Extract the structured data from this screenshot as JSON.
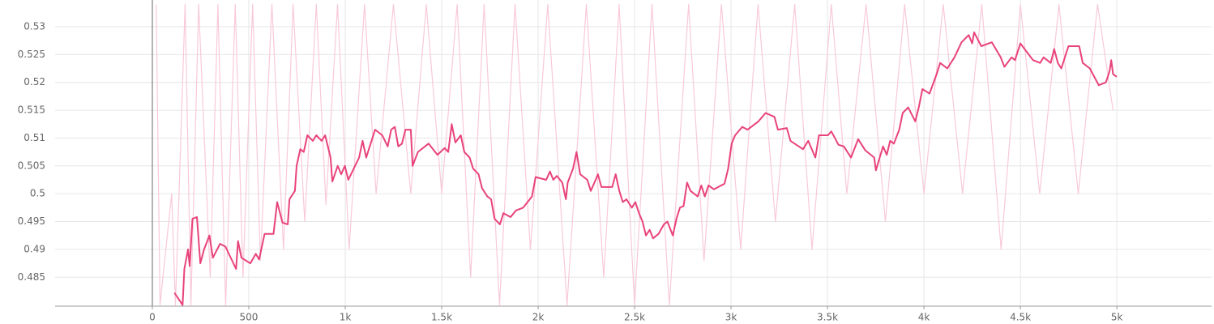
{
  "chart_data": {
    "type": "line",
    "xlim": [
      -504,
      5491
    ],
    "ylim": [
      0.4798,
      0.5348
    ],
    "xticks": [
      0,
      500,
      {
        "value": 1000,
        "label": "1k"
      },
      {
        "value": 1500,
        "label": "1.5k"
      },
      {
        "value": 2000,
        "label": "2k"
      },
      {
        "value": 2500,
        "label": "2.5k"
      },
      {
        "value": 3000,
        "label": "3k"
      },
      {
        "value": 3500,
        "label": "3.5k"
      },
      {
        "value": 4000,
        "label": "4k"
      },
      {
        "value": 4500,
        "label": "4.5k"
      },
      {
        "value": 5000,
        "label": "5k"
      }
    ],
    "yticks": [
      0.485,
      0.49,
      0.495,
      0.5,
      0.505,
      0.51,
      0.515,
      0.52,
      0.525,
      0.53
    ],
    "grid": true,
    "series": [
      {
        "color": "#f8c9da",
        "x": [
          20,
          40,
          100,
          120,
          170,
          200,
          240,
          300,
          340,
          380,
          430,
          470,
          520,
          560,
          620,
          680,
          730,
          790,
          850,
          900,
          960,
          1020,
          1100,
          1160,
          1250,
          1340,
          1420,
          1500,
          1580,
          1650,
          1720,
          1800,
          1880,
          1960,
          2050,
          2150,
          2250,
          2340,
          2420,
          2500,
          2590,
          2680,
          2780,
          2860,
          2950,
          3050,
          3140,
          3230,
          3330,
          3420,
          3520,
          3600,
          3700,
          3800,
          3900,
          4000,
          4100,
          4200,
          4300,
          4400,
          4500,
          4600,
          4700,
          4800,
          4900,
          4980
        ],
        "values": [
          0.534,
          0.48,
          0.5,
          0.48,
          0.534,
          0.48,
          0.534,
          0.485,
          0.534,
          0.48,
          0.534,
          0.485,
          0.534,
          0.488,
          0.534,
          0.49,
          0.534,
          0.495,
          0.534,
          0.498,
          0.534,
          0.49,
          0.534,
          0.5,
          0.534,
          0.5,
          0.534,
          0.5,
          0.534,
          0.485,
          0.534,
          0.48,
          0.534,
          0.49,
          0.534,
          0.48,
          0.534,
          0.485,
          0.534,
          0.48,
          0.534,
          0.48,
          0.534,
          0.488,
          0.534,
          0.49,
          0.534,
          0.495,
          0.534,
          0.49,
          0.534,
          0.5,
          0.534,
          0.495,
          0.534,
          0.5,
          0.534,
          0.5,
          0.534,
          0.49,
          0.534,
          0.5,
          0.534,
          0.5,
          0.534,
          0.515
        ]
      },
      {
        "color": "#e8437a",
        "x": [
          115,
          157,
          166,
          185,
          194,
          208,
          231,
          249,
          268,
          296,
          314,
          351,
          379,
          434,
          444,
          462,
          508,
          536,
          554,
          582,
          628,
          647,
          675,
          702,
          711,
          739,
          748,
          767,
          785,
          804,
          832,
          850,
          878,
          896,
          924,
          933,
          961,
          979,
          998,
          1016,
          1044,
          1072,
          1090,
          1109,
          1127,
          1155,
          1192,
          1220,
          1238,
          1257,
          1275,
          1294,
          1312,
          1340,
          1349,
          1377,
          1432,
          1478,
          1515,
          1534,
          1552,
          1571,
          1599,
          1617,
          1645,
          1663,
          1691,
          1709,
          1737,
          1756,
          1774,
          1802,
          1820,
          1857,
          1885,
          1922,
          1968,
          1987,
          2042,
          2061,
          2079,
          2097,
          2125,
          2144,
          2153,
          2181,
          2199,
          2218,
          2255,
          2273,
          2292,
          2310,
          2328,
          2384,
          2402,
          2421,
          2439,
          2458,
          2486,
          2504,
          2523,
          2541,
          2559,
          2578,
          2596,
          2624,
          2652,
          2670,
          2698,
          2717,
          2735,
          2754,
          2772,
          2790,
          2827,
          2846,
          2864,
          2883,
          2911,
          2966,
          2985,
          3003,
          3021,
          3058,
          3086,
          3142,
          3179,
          3225,
          3243,
          3289,
          3308,
          3373,
          3400,
          3437,
          3456,
          3502,
          3520,
          3557,
          3585,
          3622,
          3659,
          3696,
          3742,
          3751,
          3788,
          3807,
          3825,
          3844,
          3872,
          3890,
          3918,
          3955,
          3973,
          3992,
          4029,
          4066,
          4084,
          4121,
          4158,
          4195,
          4232,
          4250,
          4260,
          4297,
          4352,
          4398,
          4417,
          4454,
          4472,
          4500,
          4565,
          4602,
          4620,
          4657,
          4675,
          4694,
          4712,
          4749,
          4805,
          4823,
          4860,
          4906,
          4943,
          4962,
          4971,
          4980,
          4999
        ],
        "values": [
          0.4822,
          0.48,
          0.4865,
          0.49,
          0.487,
          0.4955,
          0.4958,
          0.4875,
          0.49,
          0.4925,
          0.4885,
          0.491,
          0.4905,
          0.4865,
          0.4915,
          0.4885,
          0.4875,
          0.4892,
          0.4882,
          0.4928,
          0.4928,
          0.4985,
          0.4948,
          0.4945,
          0.499,
          0.5005,
          0.505,
          0.508,
          0.5075,
          0.5105,
          0.5095,
          0.5105,
          0.5095,
          0.5105,
          0.5065,
          0.5022,
          0.505,
          0.5035,
          0.505,
          0.5025,
          0.5045,
          0.5065,
          0.5095,
          0.5065,
          0.5085,
          0.5115,
          0.5105,
          0.5085,
          0.5115,
          0.512,
          0.5085,
          0.509,
          0.5115,
          0.5115,
          0.505,
          0.5075,
          0.509,
          0.507,
          0.5082,
          0.5075,
          0.5125,
          0.5092,
          0.5105,
          0.5075,
          0.5065,
          0.5045,
          0.5035,
          0.501,
          0.4995,
          0.499,
          0.4955,
          0.4945,
          0.4965,
          0.4958,
          0.497,
          0.4975,
          0.4995,
          0.503,
          0.5025,
          0.504,
          0.5025,
          0.5032,
          0.502,
          0.499,
          0.502,
          0.5045,
          0.5075,
          0.5035,
          0.5025,
          0.5005,
          0.502,
          0.5035,
          0.5012,
          0.5012,
          0.5035,
          0.5005,
          0.4985,
          0.499,
          0.4975,
          0.4985,
          0.4965,
          0.495,
          0.4925,
          0.4935,
          0.492,
          0.4928,
          0.4945,
          0.495,
          0.4925,
          0.4955,
          0.4975,
          0.4978,
          0.502,
          0.5005,
          0.4995,
          0.5015,
          0.4995,
          0.5015,
          0.5008,
          0.5018,
          0.5045,
          0.509,
          0.5105,
          0.512,
          0.5115,
          0.513,
          0.5145,
          0.5138,
          0.5115,
          0.5118,
          0.5095,
          0.508,
          0.5095,
          0.5065,
          0.5105,
          0.5105,
          0.5112,
          0.5088,
          0.5085,
          0.5065,
          0.5098,
          0.5078,
          0.5065,
          0.5042,
          0.5085,
          0.507,
          0.5095,
          0.509,
          0.5115,
          0.5145,
          0.5155,
          0.513,
          0.5155,
          0.5188,
          0.518,
          0.5215,
          0.5235,
          0.5225,
          0.5245,
          0.5272,
          0.5285,
          0.527,
          0.529,
          0.5265,
          0.5272,
          0.5245,
          0.5228,
          0.5245,
          0.524,
          0.527,
          0.524,
          0.5235,
          0.5245,
          0.5235,
          0.526,
          0.5235,
          0.5225,
          0.5265,
          0.5265,
          0.5235,
          0.5225,
          0.5195,
          0.52,
          0.522,
          0.524,
          0.5215,
          0.521
        ]
      }
    ]
  }
}
